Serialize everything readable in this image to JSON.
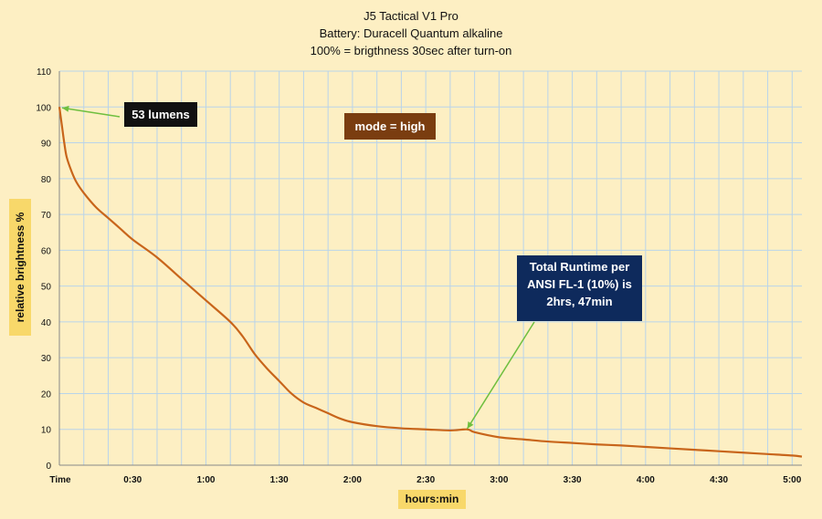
{
  "title_lines": [
    "J5 Tactical V1 Pro",
    "Battery: Duracell Quantum alkaline",
    "100% = brigthness 30sec after turn-on"
  ],
  "annotations": {
    "lumens": "53 lumens",
    "mode": "mode = high",
    "runtime_lines": [
      "Total Runtime per",
      "ANSI FL-1 (10%) is",
      "2hrs, 47min"
    ]
  },
  "colors": {
    "line": "#c8651b",
    "grid": "#b9d4ea",
    "arrow": "#6fbf3f"
  },
  "chart_data": {
    "type": "line",
    "title": "J5 Tactical V1 Pro",
    "subtitle": "Battery: Duracell Quantum alkaline / 100% = brigthness 30sec after turn-on",
    "xlabel": "hours:min",
    "ylabel": "relative  brightness  %",
    "x_unit": "minutes",
    "xlim": [
      0,
      304
    ],
    "ylim": [
      0,
      110
    ],
    "x_ticks": [
      0,
      30,
      60,
      90,
      120,
      150,
      180,
      210,
      240,
      270,
      300
    ],
    "x_tick_labels": [
      "Time",
      "0:30",
      "1:00",
      "1:30",
      "2:00",
      "2:30",
      "3:00",
      "3:30",
      "4:00",
      "4:30",
      "5:00"
    ],
    "y_ticks": [
      0,
      10,
      20,
      30,
      40,
      50,
      60,
      70,
      80,
      90,
      100,
      110
    ],
    "grid": true,
    "series": [
      {
        "x": [
          0,
          1,
          2,
          3,
          5,
          7,
          10,
          15,
          20,
          25,
          30,
          40,
          50,
          55,
          60,
          70,
          75,
          80,
          85,
          90,
          95,
          100,
          105,
          110,
          115,
          120,
          130,
          140,
          150,
          160,
          167,
          170,
          180,
          190,
          200,
          210,
          220,
          230,
          240,
          250,
          260,
          270,
          280,
          290,
          300,
          304
        ],
        "y": [
          100,
          95,
          90,
          86,
          82,
          79,
          76,
          72,
          69,
          66,
          63,
          58,
          52,
          49,
          46,
          40,
          36,
          31,
          27,
          23.5,
          20,
          17.5,
          16,
          14.5,
          13,
          12,
          10.9,
          10.3,
          10,
          9.7,
          10,
          9.2,
          7.8,
          7.2,
          6.6,
          6.2,
          5.8,
          5.5,
          5.1,
          4.7,
          4.3,
          3.9,
          3.5,
          3.1,
          2.7,
          2.4
        ]
      }
    ]
  }
}
